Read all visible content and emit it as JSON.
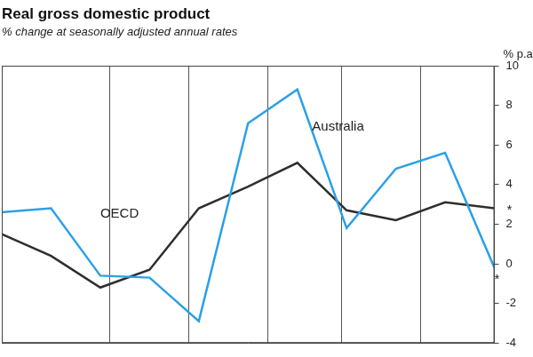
{
  "chart_data": {
    "type": "line",
    "title": "Real gross domestic product",
    "subtitle": "% change at seasonally adjusted annual rates",
    "ylabel": "% p.a.",
    "x": [
      0,
      1,
      2,
      3,
      4,
      5,
      6,
      7,
      8,
      9,
      10
    ],
    "xlim": [
      0,
      10
    ],
    "xticks": [
      2.2,
      3.8,
      5.4,
      6.9,
      8.5
    ],
    "ylim": [
      -4,
      10
    ],
    "yticks": [
      -4,
      -2,
      0,
      2,
      4,
      6,
      8,
      10
    ],
    "grid": true,
    "tick_labels": "y",
    "series": [
      {
        "name": "Australia",
        "color": "#2ba0e6",
        "values": [
          2.6,
          2.8,
          -0.6,
          -0.7,
          -2.9,
          7.1,
          8.8,
          1.8,
          4.8,
          5.6,
          -0.2
        ]
      },
      {
        "name": "OECD",
        "color": "#2e2e2e",
        "values": [
          1.5,
          0.4,
          -1.2,
          -0.3,
          2.8,
          3.9,
          5.1,
          2.7,
          2.2,
          3.1,
          2.8
        ]
      }
    ],
    "annotations": [
      {
        "text": "Australia",
        "x": 6.3,
        "y": 6.9
      },
      {
        "text": "OECD",
        "x": 2.0,
        "y": 2.5
      },
      {
        "text": "*",
        "x": 10.25,
        "y": 2.7
      },
      {
        "text": "*",
        "x": 10.0,
        "y": -0.8
      }
    ]
  }
}
